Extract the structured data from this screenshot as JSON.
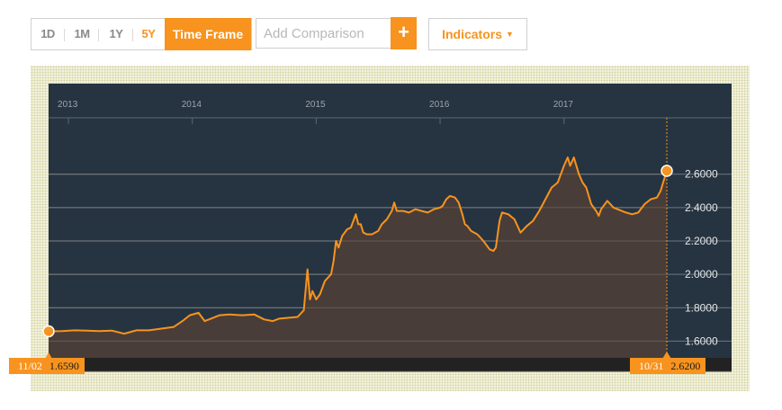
{
  "toolbar": {
    "ranges": [
      {
        "label": "1D",
        "selected": false
      },
      {
        "label": "1M",
        "selected": false
      },
      {
        "label": "1Y",
        "selected": false
      },
      {
        "label": "5Y",
        "selected": true
      }
    ],
    "timeframe_label": "Time Frame",
    "comparison_placeholder": "Add Comparison",
    "plus_label": "+",
    "indicators_label": "Indicators",
    "indicators_icon": "caret-down-icon"
  },
  "start_marker": {
    "date": "11/02",
    "value": "1.6590"
  },
  "end_marker": {
    "date": "10/31",
    "value": "2.6200"
  },
  "colors": {
    "accent": "#f7931e",
    "plot_bg": "#263441",
    "area_fill": "#4a3e38",
    "line": "#f7931e"
  },
  "chart_data": {
    "type": "area",
    "x_ticks": [
      "2013",
      "2014",
      "2015",
      "2016",
      "2017"
    ],
    "y_ticks": [
      "1.6000",
      "1.8000",
      "2.0000",
      "2.2000",
      "2.4000",
      "2.6000"
    ],
    "ylim": [
      1.5,
      2.9
    ],
    "xlim": [
      2012.84,
      2017.83
    ],
    "grid": true,
    "points": [
      [
        2012.84,
        1.659
      ],
      [
        2012.95,
        1.66
      ],
      [
        2013.05,
        1.665
      ],
      [
        2013.15,
        1.663
      ],
      [
        2013.25,
        1.66
      ],
      [
        2013.35,
        1.663
      ],
      [
        2013.45,
        1.645
      ],
      [
        2013.55,
        1.665
      ],
      [
        2013.65,
        1.665
      ],
      [
        2013.75,
        1.675
      ],
      [
        2013.85,
        1.685
      ],
      [
        2013.92,
        1.72
      ],
      [
        2013.98,
        1.755
      ],
      [
        2014.05,
        1.77
      ],
      [
        2014.1,
        1.72
      ],
      [
        2014.15,
        1.735
      ],
      [
        2014.22,
        1.755
      ],
      [
        2014.3,
        1.76
      ],
      [
        2014.4,
        1.755
      ],
      [
        2014.5,
        1.76
      ],
      [
        2014.58,
        1.73
      ],
      [
        2014.65,
        1.72
      ],
      [
        2014.7,
        1.735
      ],
      [
        2014.78,
        1.74
      ],
      [
        2014.85,
        1.745
      ],
      [
        2014.9,
        1.785
      ],
      [
        2014.93,
        2.03
      ],
      [
        2014.95,
        1.85
      ],
      [
        2014.97,
        1.9
      ],
      [
        2015.0,
        1.85
      ],
      [
        2015.03,
        1.88
      ],
      [
        2015.07,
        1.96
      ],
      [
        2015.12,
        2.0
      ],
      [
        2015.14,
        2.08
      ],
      [
        2015.16,
        2.2
      ],
      [
        2015.18,
        2.16
      ],
      [
        2015.21,
        2.23
      ],
      [
        2015.25,
        2.27
      ],
      [
        2015.28,
        2.28
      ],
      [
        2015.32,
        2.36
      ],
      [
        2015.34,
        2.3
      ],
      [
        2015.36,
        2.3
      ],
      [
        2015.38,
        2.25
      ],
      [
        2015.41,
        2.24
      ],
      [
        2015.45,
        2.24
      ],
      [
        2015.5,
        2.26
      ],
      [
        2015.53,
        2.3
      ],
      [
        2015.57,
        2.33
      ],
      [
        2015.61,
        2.38
      ],
      [
        2015.63,
        2.43
      ],
      [
        2015.65,
        2.38
      ],
      [
        2015.7,
        2.38
      ],
      [
        2015.75,
        2.37
      ],
      [
        2015.8,
        2.39
      ],
      [
        2015.85,
        2.38
      ],
      [
        2015.9,
        2.37
      ],
      [
        2015.95,
        2.39
      ],
      [
        2016.0,
        2.4
      ],
      [
        2016.02,
        2.41
      ],
      [
        2016.05,
        2.45
      ],
      [
        2016.08,
        2.47
      ],
      [
        2016.12,
        2.46
      ],
      [
        2016.15,
        2.43
      ],
      [
        2016.18,
        2.36
      ],
      [
        2016.2,
        2.3
      ],
      [
        2016.22,
        2.29
      ],
      [
        2016.25,
        2.26
      ],
      [
        2016.3,
        2.24
      ],
      [
        2016.35,
        2.2
      ],
      [
        2016.4,
        2.15
      ],
      [
        2016.43,
        2.14
      ],
      [
        2016.45,
        2.16
      ],
      [
        2016.48,
        2.32
      ],
      [
        2016.5,
        2.37
      ],
      [
        2016.55,
        2.36
      ],
      [
        2016.6,
        2.33
      ],
      [
        2016.65,
        2.25
      ],
      [
        2016.7,
        2.29
      ],
      [
        2016.75,
        2.32
      ],
      [
        2016.8,
        2.38
      ],
      [
        2016.85,
        2.45
      ],
      [
        2016.9,
        2.52
      ],
      [
        2016.95,
        2.55
      ],
      [
        2017.0,
        2.65
      ],
      [
        2017.03,
        2.7
      ],
      [
        2017.05,
        2.65
      ],
      [
        2017.08,
        2.7
      ],
      [
        2017.12,
        2.6
      ],
      [
        2017.15,
        2.55
      ],
      [
        2017.18,
        2.52
      ],
      [
        2017.22,
        2.42
      ],
      [
        2017.26,
        2.38
      ],
      [
        2017.28,
        2.35
      ],
      [
        2017.3,
        2.39
      ],
      [
        2017.35,
        2.44
      ],
      [
        2017.4,
        2.4
      ],
      [
        2017.5,
        2.37
      ],
      [
        2017.55,
        2.36
      ],
      [
        2017.6,
        2.37
      ],
      [
        2017.65,
        2.42
      ],
      [
        2017.7,
        2.45
      ],
      [
        2017.75,
        2.46
      ],
      [
        2017.78,
        2.5
      ],
      [
        2017.8,
        2.55
      ],
      [
        2017.83,
        2.62
      ]
    ]
  }
}
